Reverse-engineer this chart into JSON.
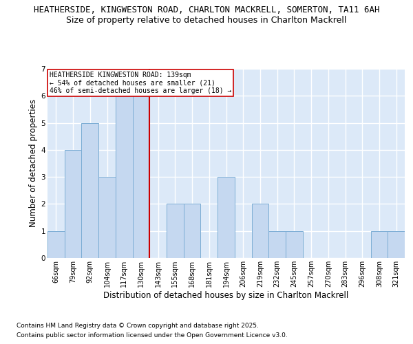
{
  "title1": "HEATHERSIDE, KINGWESTON ROAD, CHARLTON MACKRELL, SOMERTON, TA11 6AH",
  "title2": "Size of property relative to detached houses in Charlton Mackrell",
  "xlabel": "Distribution of detached houses by size in Charlton Mackrell",
  "ylabel": "Number of detached properties",
  "footnote1": "Contains HM Land Registry data © Crown copyright and database right 2025.",
  "footnote2": "Contains public sector information licensed under the Open Government Licence v3.0.",
  "bin_labels": [
    "66sqm",
    "79sqm",
    "92sqm",
    "104sqm",
    "117sqm",
    "130sqm",
    "143sqm",
    "155sqm",
    "168sqm",
    "181sqm",
    "194sqm",
    "206sqm",
    "219sqm",
    "232sqm",
    "245sqm",
    "257sqm",
    "270sqm",
    "283sqm",
    "296sqm",
    "308sqm",
    "321sqm"
  ],
  "bar_values": [
    1,
    4,
    5,
    3,
    6,
    6,
    0,
    2,
    2,
    0,
    3,
    0,
    2,
    1,
    1,
    0,
    0,
    0,
    0,
    1,
    1
  ],
  "bar_color": "#c5d8f0",
  "bar_edge_color": "#7badd4",
  "ref_line_x": 5.5,
  "ref_line_label": "HEATHERSIDE KINGWESTON ROAD: 139sqm",
  "ref_line_color": "#cc0000",
  "annotation_line1": "← 54% of detached houses are smaller (21)",
  "annotation_line2": "46% of semi-detached houses are larger (18) →",
  "annotation_box_color": "#ffffff",
  "annotation_box_edge": "#cc0000",
  "ylim": [
    0,
    7
  ],
  "yticks": [
    0,
    1,
    2,
    3,
    4,
    5,
    6,
    7
  ],
  "fig_background": "#ffffff",
  "plot_background": "#dce9f8",
  "grid_color": "#ffffff",
  "title1_fontsize": 9,
  "title2_fontsize": 9,
  "xlabel_fontsize": 8.5,
  "ylabel_fontsize": 8.5,
  "footnote_fontsize": 6.5,
  "tick_fontsize": 7,
  "annot_fontsize": 7
}
